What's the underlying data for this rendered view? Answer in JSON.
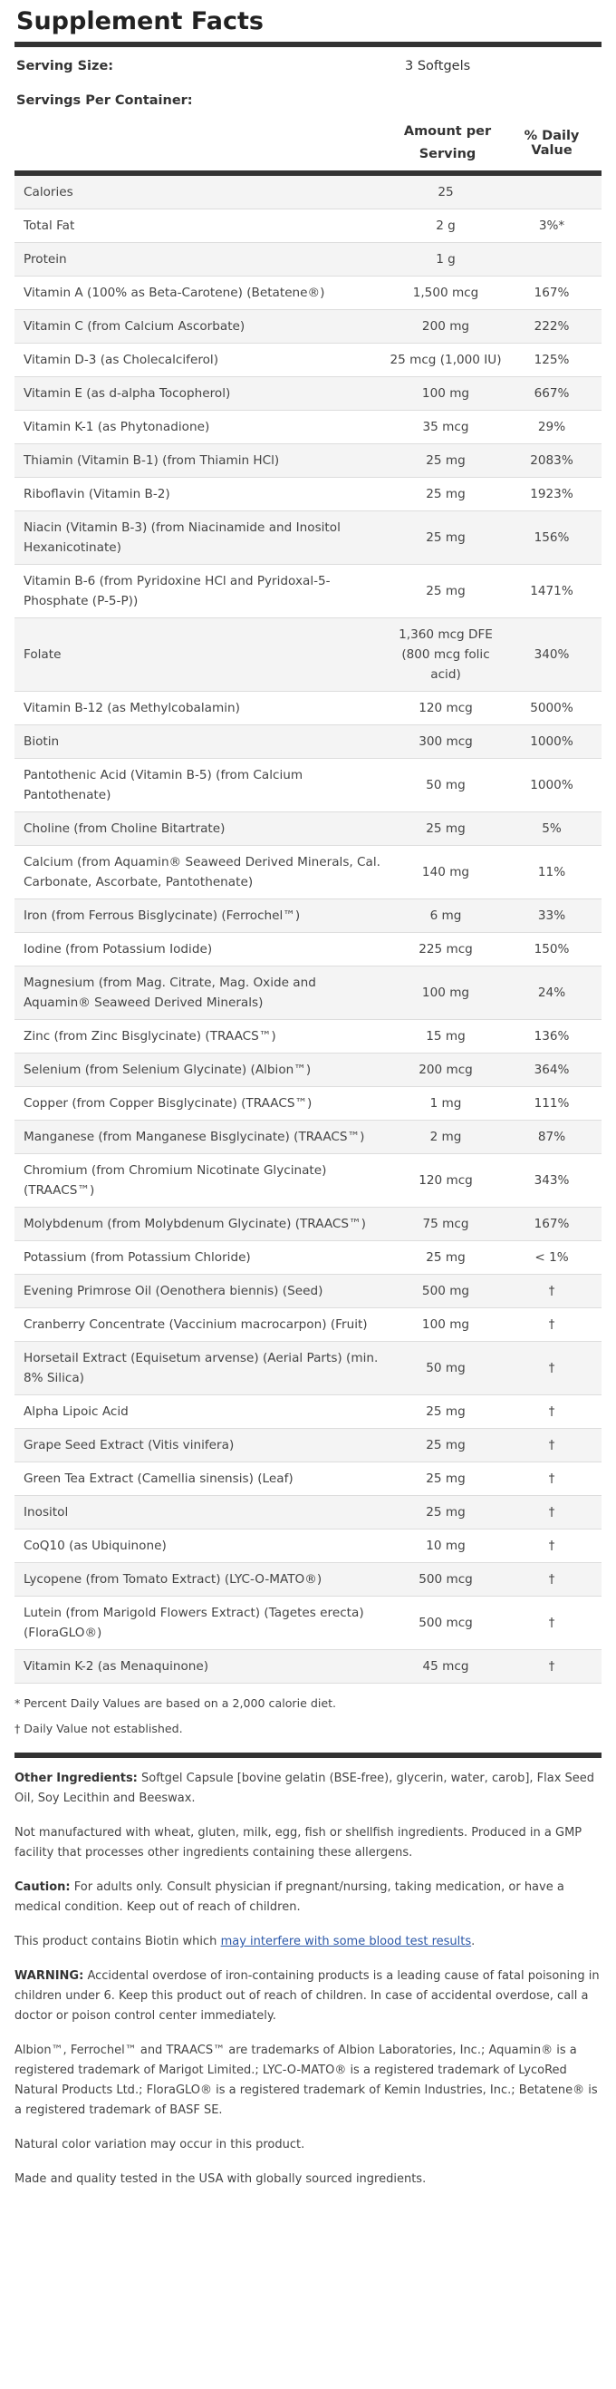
{
  "title": "Supplement Facts",
  "serving_size_label": "Serving Size:",
  "serving_size_value": "3 Softgels",
  "servings_per_container_label": "Servings Per Container:",
  "col_amount": "Amount per Serving",
  "col_dv": "% Daily Value",
  "rows": [
    {
      "name": "Calories",
      "amount": "25",
      "dv": ""
    },
    {
      "name": "Total Fat",
      "amount": "2 g",
      "dv": "3%*"
    },
    {
      "name": "Protein",
      "amount": "1 g",
      "dv": ""
    },
    {
      "name": "Vitamin A (100% as Beta-Carotene) (Betatene®)",
      "amount": "1,500 mcg",
      "dv": "167%"
    },
    {
      "name": "Vitamin C (from Calcium Ascorbate)",
      "amount": "200 mg",
      "dv": "222%"
    },
    {
      "name": "Vitamin D-3 (as Cholecalciferol)",
      "amount": "25 mcg (1,000 IU)",
      "dv": "125%"
    },
    {
      "name": "Vitamin E (as d-alpha Tocopherol)",
      "amount": "100 mg",
      "dv": "667%"
    },
    {
      "name": "Vitamin K-1 (as Phytonadione)",
      "amount": "35 mcg",
      "dv": "29%"
    },
    {
      "name": "Thiamin (Vitamin B-1) (from Thiamin HCl)",
      "amount": "25 mg",
      "dv": "2083%"
    },
    {
      "name": "Riboflavin (Vitamin B-2)",
      "amount": "25 mg",
      "dv": "1923%"
    },
    {
      "name": "Niacin (Vitamin B-3) (from Niacinamide and Inositol Hexanicotinate)",
      "amount": "25 mg",
      "dv": "156%"
    },
    {
      "name": "Vitamin B-6 (from Pyridoxine HCl and Pyridoxal-5-Phosphate (P-5-P))",
      "amount": "25 mg",
      "dv": "1471%"
    },
    {
      "name": "Folate",
      "amount": "1,360 mcg DFE (800 mcg folic acid)",
      "dv": "340%"
    },
    {
      "name": "Vitamin B-12 (as Methylcobalamin)",
      "amount": "120 mcg",
      "dv": "5000%"
    },
    {
      "name": "Biotin",
      "amount": "300 mcg",
      "dv": "1000%"
    },
    {
      "name": "Pantothenic Acid (Vitamin B-5) (from Calcium Pantothenate)",
      "amount": "50 mg",
      "dv": "1000%"
    },
    {
      "name": "Choline (from Choline Bitartrate)",
      "amount": "25 mg",
      "dv": "5%"
    },
    {
      "name": "Calcium (from Aquamin® Seaweed Derived Minerals, Cal. Carbonate, Ascorbate, Pantothenate)",
      "amount": "140 mg",
      "dv": "11%"
    },
    {
      "name": "Iron (from Ferrous Bisglycinate) (Ferrochel™)",
      "amount": "6 mg",
      "dv": "33%"
    },
    {
      "name": "Iodine (from Potassium Iodide)",
      "amount": "225 mcg",
      "dv": "150%"
    },
    {
      "name": "Magnesium (from Mag. Citrate, Mag. Oxide and Aquamin® Seaweed Derived Minerals)",
      "amount": "100 mg",
      "dv": "24%"
    },
    {
      "name": "Zinc (from Zinc Bisglycinate) (TRAACS™)",
      "amount": "15 mg",
      "dv": "136%"
    },
    {
      "name": "Selenium (from Selenium Glycinate) (Albion™)",
      "amount": "200 mcg",
      "dv": "364%"
    },
    {
      "name": "Copper (from Copper Bisglycinate) (TRAACS™)",
      "amount": "1 mg",
      "dv": "111%"
    },
    {
      "name": "Manganese (from Manganese Bisglycinate) (TRAACS™)",
      "amount": "2 mg",
      "dv": "87%"
    },
    {
      "name": "Chromium (from Chromium Nicotinate Glycinate) (TRAACS™)",
      "amount": "120 mcg",
      "dv": "343%"
    },
    {
      "name": "Molybdenum (from Molybdenum Glycinate) (TRAACS™)",
      "amount": "75 mcg",
      "dv": "167%"
    },
    {
      "name": "Potassium (from Potassium Chloride)",
      "amount": "25 mg",
      "dv": "< 1%"
    },
    {
      "name": "Evening Primrose Oil (Oenothera biennis) (Seed)",
      "amount": "500 mg",
      "dv": "†"
    },
    {
      "name": "Cranberry Concentrate (Vaccinium macrocarpon) (Fruit)",
      "amount": "100 mg",
      "dv": "†"
    },
    {
      "name": "Horsetail Extract (Equisetum arvense) (Aerial Parts) (min. 8% Silica)",
      "amount": "50 mg",
      "dv": "†"
    },
    {
      "name": "Alpha Lipoic Acid",
      "amount": "25 mg",
      "dv": "†"
    },
    {
      "name": "Grape Seed Extract (Vitis vinifera)",
      "amount": "25 mg",
      "dv": "†"
    },
    {
      "name": "Green Tea Extract (Camellia sinensis) (Leaf)",
      "amount": "25 mg",
      "dv": "†"
    },
    {
      "name": "Inositol",
      "amount": "25 mg",
      "dv": "†"
    },
    {
      "name": "CoQ10 (as Ubiquinone)",
      "amount": "10 mg",
      "dv": "†"
    },
    {
      "name": "Lycopene (from Tomato Extract) (LYC-O-MATO®)",
      "amount": "500 mcg",
      "dv": "†"
    },
    {
      "name": "Lutein (from Marigold Flowers Extract) (Tagetes erecta)(FloraGLO®)",
      "amount": "500 mcg",
      "dv": "†"
    },
    {
      "name": "Vitamin K-2 (as Menaquinone)",
      "amount": "45 mcg",
      "dv": "†"
    }
  ],
  "footnote_dv": "* Percent Daily Values are based on a 2,000 calorie diet.",
  "footnote_dagger": "† Daily Value not established.",
  "other_ingredients_label": "Other Ingredients:",
  "other_ingredients_text": "Softgel Capsule [bovine gelatin (BSE-free), glycerin, water, carob], Flax Seed Oil, Soy Lecithin and Beeswax.",
  "manufacturing_text": "Not manufactured with wheat, gluten, milk, egg, fish or shellfish ingredients. Produced in a GMP facility that processes other ingredients containing these allergens.",
  "caution_label": "Caution:",
  "caution_text": "For adults only. Consult physician if pregnant/nursing, taking medication, or have a medical condition. Keep out of reach of children.",
  "biotin_text": "This product contains Biotin which",
  "biotin_link": "may interfere with some blood test results",
  "biotin_end": ".",
  "warning_label": "WARNING:",
  "warning_text": "Accidental overdose of iron-containing products is a leading cause of fatal poisoning in children under 6. Keep this product out of reach of children. In case of accidental overdose, call a doctor or poison control center immediately.",
  "trademarks_text": "Albion™, Ferrochel™ and TRAACS™ are trademarks of Albion Laboratories, Inc.; Aquamin® is a registered trademark of Marigot Limited.; LYC-O-MATO® is a registered trademark of LycoRed Natural Products Ltd.; FloraGLO® is a registered trademark of Kemin Industries, Inc.; Betatene® is a registered trademark of BASF SE.",
  "color_text": "Natural color variation may occur in this product.",
  "made_text": "Made and quality tested in the USA with globally sourced ingredients."
}
